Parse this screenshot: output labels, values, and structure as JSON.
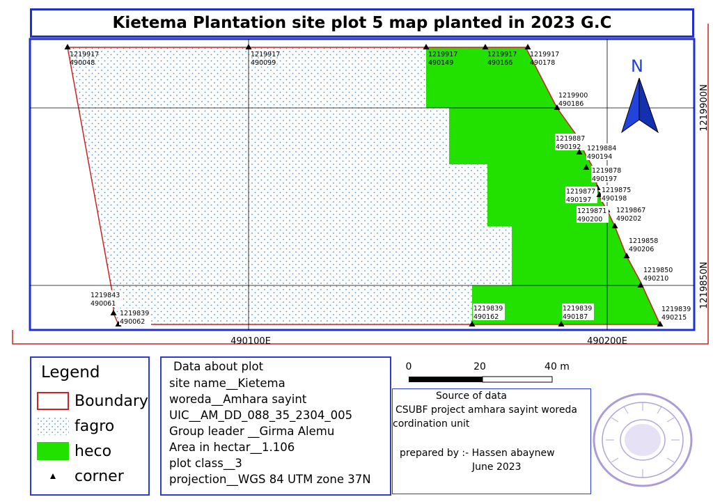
{
  "title": "Kietema Plantation site plot 5 map planted in 2023 G.C",
  "grid": {
    "x_labels": [
      "490100E",
      "490200E"
    ],
    "y_labels": [
      "1219900N",
      "1219850N"
    ]
  },
  "north_arrow": {
    "label": "N",
    "icon": "north-arrow-icon"
  },
  "corners": [
    {
      "n": "1219917",
      "e": "490048"
    },
    {
      "n": "1219917",
      "e": "490099"
    },
    {
      "n": "1219917",
      "e": "490149"
    },
    {
      "n": "1219917",
      "e": "490166"
    },
    {
      "n": "1219917",
      "e": "490178"
    },
    {
      "n": "1219900",
      "e": "490186"
    },
    {
      "n": "1219887",
      "e": "490192"
    },
    {
      "n": "1219884",
      "e": "490194"
    },
    {
      "n": "1219878",
      "e": "490197"
    },
    {
      "n": "1219877",
      "e": "490197"
    },
    {
      "n": "1219875",
      "e": "490198"
    },
    {
      "n": "1219871",
      "e": "490200"
    },
    {
      "n": "1219867",
      "e": "490202"
    },
    {
      "n": "1219858",
      "e": "490206"
    },
    {
      "n": "1219850",
      "e": "490210"
    },
    {
      "n": "1219839",
      "e": "490215"
    },
    {
      "n": "1219839",
      "e": "490187"
    },
    {
      "n": "1219839",
      "e": "490162"
    },
    {
      "n": "1219839",
      "e": "490062"
    },
    {
      "n": "1219843",
      "e": "490061"
    }
  ],
  "legend": {
    "title": "Legend",
    "items": [
      {
        "label": "Boundary",
        "color": "#cc2222"
      },
      {
        "label": "fagro",
        "color": "#4a90c8"
      },
      {
        "label": "heco",
        "color": "#22e000"
      },
      {
        "label": "corner",
        "icon": "triangle-icon"
      }
    ]
  },
  "plot_info": {
    "heading": "Data about plot",
    "lines": [
      "site name__Kietema",
      "woreda__Amhara sayint",
      "UIC__AM_DD_088_35_2304_005",
      "Group leader __Girma Alemu",
      "Area in hectar__1.106",
      "plot class__3",
      "projection__WGS 84 UTM zone 37N"
    ]
  },
  "scale_bar": {
    "labels": [
      "0",
      "20",
      "40 m"
    ]
  },
  "source": {
    "heading": "Source of data",
    "lines": [
      "CSUBF project amhara sayint woreda",
      "cordination unit"
    ],
    "prepared_by": "prepared by :- Hassen abaynew",
    "date": "June 2023"
  },
  "stamp": {
    "icon": "official-stamp-icon"
  },
  "colors": {
    "frame": "#1f2fd0",
    "boundary": "#cc2222",
    "heco": "#22e000",
    "fagro_dot": "#4a90c8"
  }
}
